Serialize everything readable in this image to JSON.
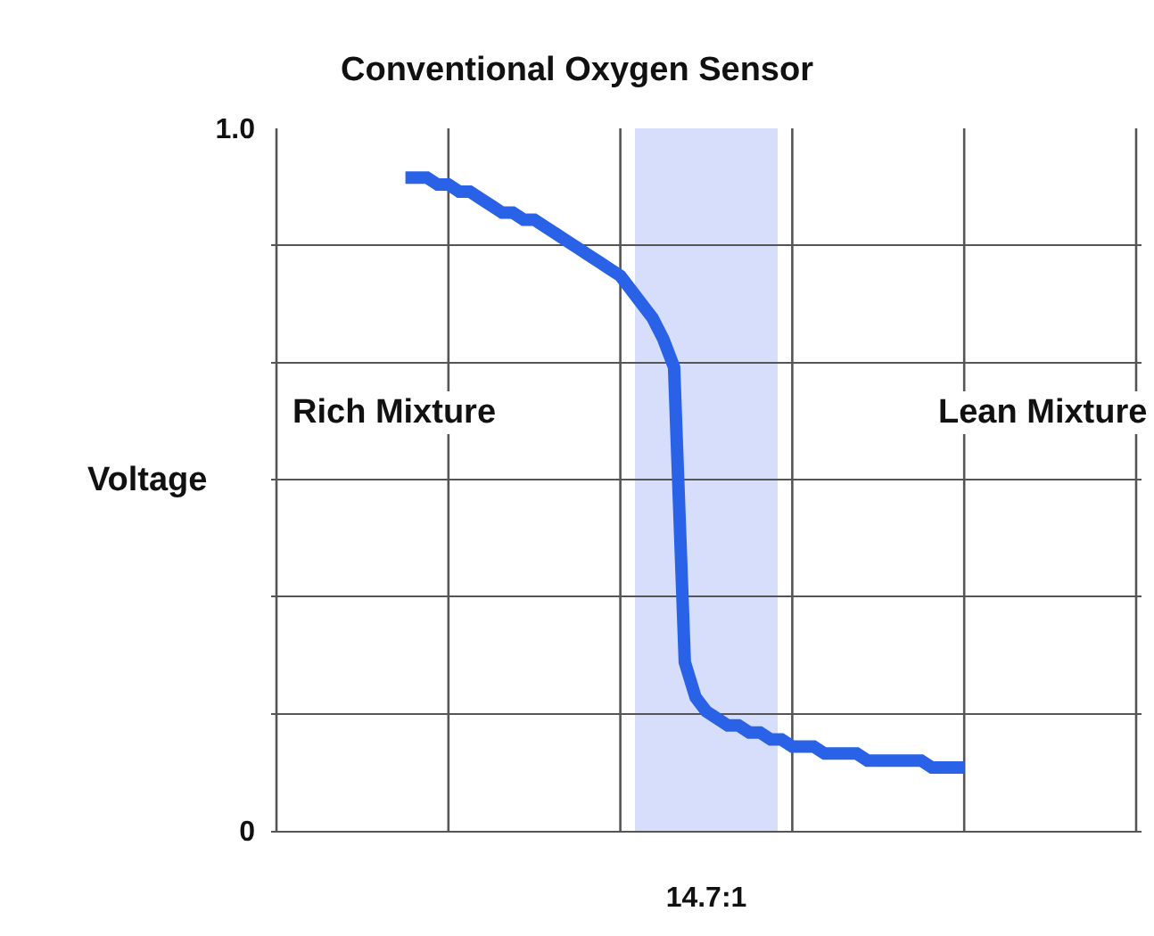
{
  "chart_data": {
    "type": "line",
    "title": "Conventional Oxygen Sensor",
    "ylabel": "Voltage",
    "categories": [
      null,
      null,
      null,
      null,
      null,
      null,
      null,
      null,
      null,
      null,
      null,
      null,
      null,
      null,
      null,
      null,
      null,
      null,
      null,
      null,
      null,
      null,
      null,
      null,
      null,
      null,
      null,
      null,
      null,
      null,
      null,
      null,
      null,
      null,
      null,
      null,
      null,
      null,
      null,
      null,
      "14.7:1",
      null,
      null,
      null,
      null,
      null,
      null,
      null,
      null,
      null,
      null,
      null,
      null,
      null,
      null,
      null,
      null,
      null,
      null,
      null,
      null,
      null,
      null,
      null,
      null,
      null,
      null,
      null,
      null,
      null,
      null,
      null,
      null,
      null,
      null,
      null,
      null,
      null,
      null,
      null,
      null
    ],
    "series": [
      {
        "color": "#2962e6",
        "values": [
          null,
          null,
          null,
          null,
          null,
          null,
          null,
          null,
          null,
          null,
          null,
          null,
          0.93,
          0.93,
          0.93,
          0.92,
          0.92,
          0.91,
          0.91,
          0.9,
          0.89,
          0.88,
          0.88,
          0.87,
          0.87,
          0.86,
          0.85,
          0.84,
          0.83,
          0.82,
          0.81,
          0.8,
          0.79,
          0.77,
          0.75,
          0.73,
          0.7,
          0.66,
          0.24,
          0.19,
          0.17,
          0.16,
          0.15,
          0.15,
          0.14,
          0.14,
          0.13,
          0.13,
          0.12,
          0.12,
          0.12,
          0.11,
          0.11,
          0.11,
          0.11,
          0.1,
          0.1,
          0.1,
          0.1,
          0.1,
          0.1,
          0.09,
          0.09,
          0.09,
          0.09,
          null,
          null,
          null,
          null,
          null,
          null,
          null,
          null,
          null,
          null,
          null,
          null,
          null,
          null,
          null,
          null
        ]
      }
    ],
    "ylim": [
      0,
      1
    ],
    "yticks": [
      0,
      {
        "value": 0.1667,
        "label": null
      },
      {
        "value": 0.3333,
        "label": null
      },
      {
        "value": 0.5,
        "label": null
      },
      {
        "value": 0.6667,
        "label": null
      },
      {
        "value": 0.8333,
        "label": null
      },
      {
        "value": 1,
        "label": "1.0"
      }
    ],
    "ref_lines": [
      {
        "axis": "x",
        "value": "14.7:1",
        "color": "#c9d3fa"
      }
    ],
    "annotations": [
      "Rich Mixture",
      "Lean Mixture"
    ],
    "grid": true,
    "marker": "none",
    "line_style": "solid"
  }
}
